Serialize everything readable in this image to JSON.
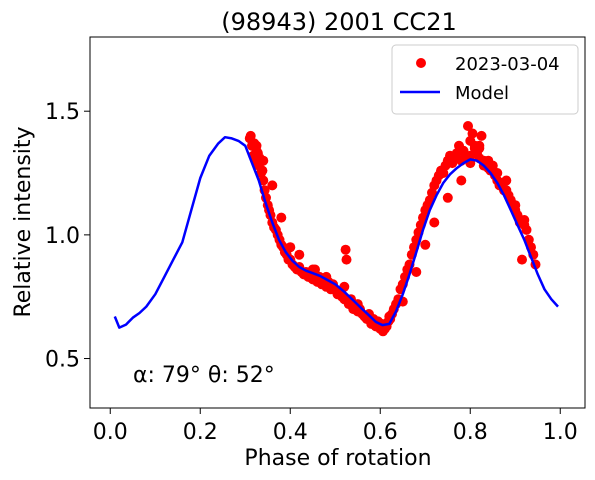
{
  "chart_data": {
    "type": "scatter",
    "title": "(98943) 2001 CC21",
    "xlabel": "Phase of rotation",
    "ylabel": "Relative intensity",
    "xlim": [
      -0.045,
      1.055
    ],
    "ylim": [
      0.3,
      1.8
    ],
    "xticks": [
      0.0,
      0.2,
      0.4,
      0.6,
      0.8,
      1.0
    ],
    "xtick_labels": [
      "0.0",
      "0.2",
      "0.4",
      "0.6",
      "0.8",
      "1.0"
    ],
    "yticks": [
      0.5,
      1.0,
      1.5
    ],
    "ytick_labels": [
      "0.5",
      "1.0",
      "1.5"
    ],
    "grid": false,
    "legend_position": "upper right",
    "annotation": "α: 79° θ: 52°",
    "series": [
      {
        "name": "2023-03-04",
        "kind": "scatter",
        "color": "#ff0000",
        "x": [
          0.31,
          0.312,
          0.315,
          0.318,
          0.32,
          0.322,
          0.325,
          0.328,
          0.33,
          0.332,
          0.335,
          0.338,
          0.34,
          0.343,
          0.346,
          0.35,
          0.353,
          0.356,
          0.36,
          0.364,
          0.368,
          0.372,
          0.376,
          0.38,
          0.384,
          0.388,
          0.392,
          0.396,
          0.4,
          0.405,
          0.41,
          0.415,
          0.42,
          0.425,
          0.43,
          0.435,
          0.44,
          0.445,
          0.45,
          0.455,
          0.46,
          0.465,
          0.47,
          0.475,
          0.48,
          0.485,
          0.49,
          0.495,
          0.5,
          0.505,
          0.51,
          0.515,
          0.52,
          0.523,
          0.525,
          0.53,
          0.535,
          0.54,
          0.545,
          0.55,
          0.555,
          0.56,
          0.565,
          0.57,
          0.575,
          0.58,
          0.585,
          0.59,
          0.595,
          0.6,
          0.603,
          0.606,
          0.61,
          0.614,
          0.618,
          0.622,
          0.626,
          0.63,
          0.635,
          0.64,
          0.645,
          0.65,
          0.655,
          0.66,
          0.665,
          0.67,
          0.675,
          0.68,
          0.685,
          0.69,
          0.695,
          0.7,
          0.705,
          0.71,
          0.715,
          0.72,
          0.725,
          0.73,
          0.735,
          0.74,
          0.745,
          0.75,
          0.755,
          0.76,
          0.765,
          0.77,
          0.775,
          0.78,
          0.785,
          0.79,
          0.795,
          0.8,
          0.805,
          0.81,
          0.815,
          0.82,
          0.825,
          0.83,
          0.835,
          0.84,
          0.845,
          0.85,
          0.855,
          0.86,
          0.865,
          0.87,
          0.875,
          0.88,
          0.885,
          0.89,
          0.895,
          0.9,
          0.905,
          0.91,
          0.915,
          0.92,
          0.925,
          0.93,
          0.935,
          0.94,
          0.945,
          0.325,
          0.34,
          0.36,
          0.38,
          0.4,
          0.42,
          0.45,
          0.48,
          0.52,
          0.55,
          0.58,
          0.6,
          0.62,
          0.65,
          0.68,
          0.7,
          0.72,
          0.75,
          0.78,
          0.8,
          0.82,
          0.84,
          0.86,
          0.88,
          0.9,
          0.92,
          0.8,
          0.81,
          0.82,
          0.83
        ],
        "y": [
          1.39,
          1.4,
          1.36,
          1.32,
          1.37,
          1.3,
          1.34,
          1.33,
          1.28,
          1.31,
          1.25,
          1.26,
          1.22,
          1.18,
          1.15,
          1.12,
          1.1,
          1.08,
          1.05,
          1.03,
          1.02,
          1.0,
          0.98,
          0.96,
          0.95,
          0.93,
          0.92,
          0.9,
          0.9,
          0.88,
          0.87,
          0.86,
          0.87,
          0.85,
          0.84,
          0.85,
          0.83,
          0.84,
          0.82,
          0.86,
          0.81,
          0.83,
          0.8,
          0.82,
          0.79,
          0.81,
          0.78,
          0.8,
          0.78,
          0.76,
          0.77,
          0.75,
          0.74,
          0.94,
          0.9,
          0.72,
          0.74,
          0.7,
          0.71,
          0.69,
          0.7,
          0.68,
          0.67,
          0.66,
          0.68,
          0.64,
          0.66,
          0.63,
          0.65,
          0.62,
          0.64,
          0.61,
          0.62,
          0.63,
          0.65,
          0.66,
          0.68,
          0.7,
          0.72,
          0.74,
          0.78,
          0.8,
          0.83,
          0.86,
          0.88,
          0.92,
          0.95,
          0.98,
          1.01,
          1.04,
          1.07,
          1.1,
          1.12,
          1.14,
          1.17,
          1.2,
          1.22,
          1.24,
          1.26,
          1.25,
          1.28,
          1.3,
          1.32,
          1.29,
          1.31,
          1.33,
          1.36,
          1.3,
          1.34,
          1.32,
          1.44,
          1.38,
          1.41,
          1.35,
          1.33,
          1.36,
          1.4,
          1.3,
          1.29,
          1.27,
          1.26,
          1.28,
          1.24,
          1.22,
          1.2,
          1.21,
          1.18,
          1.22,
          1.16,
          1.14,
          1.12,
          1.1,
          1.08,
          1.05,
          0.9,
          1.06,
          1.02,
          0.98,
          0.95,
          0.92,
          0.88,
          1.36,
          1.3,
          1.2,
          1.07,
          0.95,
          0.92,
          0.86,
          0.83,
          0.79,
          0.72,
          0.66,
          0.63,
          0.67,
          0.73,
          0.85,
          0.96,
          1.05,
          1.15,
          1.22,
          1.29,
          1.35,
          1.3,
          1.25,
          1.18,
          1.12,
          1.04,
          1.32,
          1.36,
          1.31,
          1.28
        ]
      },
      {
        "name": "Model",
        "kind": "line",
        "color": "#0000ff",
        "x": [
          0.01,
          0.02,
          0.035,
          0.05,
          0.065,
          0.08,
          0.1,
          0.12,
          0.14,
          0.16,
          0.18,
          0.2,
          0.22,
          0.24,
          0.255,
          0.27,
          0.285,
          0.3,
          0.315,
          0.33,
          0.345,
          0.36,
          0.375,
          0.39,
          0.405,
          0.42,
          0.435,
          0.45,
          0.465,
          0.48,
          0.5,
          0.52,
          0.54,
          0.56,
          0.575,
          0.59,
          0.605,
          0.62,
          0.635,
          0.65,
          0.665,
          0.68,
          0.695,
          0.71,
          0.725,
          0.74,
          0.755,
          0.77,
          0.785,
          0.8,
          0.815,
          0.83,
          0.845,
          0.86,
          0.875,
          0.89,
          0.905,
          0.92,
          0.935,
          0.95,
          0.965,
          0.98,
          0.995
        ],
        "y": [
          0.67,
          0.625,
          0.637,
          0.665,
          0.684,
          0.71,
          0.76,
          0.83,
          0.9,
          0.97,
          1.1,
          1.23,
          1.32,
          1.37,
          1.395,
          1.39,
          1.38,
          1.36,
          1.29,
          1.22,
          1.13,
          1.05,
          0.98,
          0.93,
          0.895,
          0.87,
          0.855,
          0.845,
          0.835,
          0.82,
          0.8,
          0.77,
          0.735,
          0.7,
          0.675,
          0.648,
          0.635,
          0.64,
          0.69,
          0.76,
          0.84,
          0.93,
          1.02,
          1.1,
          1.16,
          1.21,
          1.245,
          1.27,
          1.29,
          1.305,
          1.3,
          1.28,
          1.25,
          1.21,
          1.16,
          1.1,
          1.04,
          0.98,
          0.91,
          0.84,
          0.78,
          0.74,
          0.71
        ]
      }
    ]
  }
}
